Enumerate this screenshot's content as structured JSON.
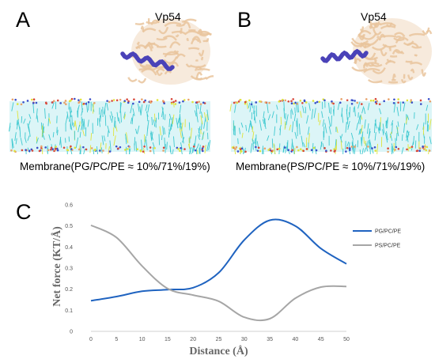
{
  "panels": {
    "a": {
      "letter": "A",
      "protein_label": "Vp54",
      "membrane_label": "Membrane(PG/PC/PE ≈ 10%/71%/19%)"
    },
    "b": {
      "letter": "B",
      "protein_label": "Vp54",
      "membrane_label": "Membrane(PS/PC/PE ≈ 10%/71%/19%)"
    },
    "c": {
      "letter": "C"
    }
  },
  "colors": {
    "protein_ribbon": "#e9c49c",
    "helix": "#4a42b8",
    "lipid_tails": "#3fc9d0",
    "lipid_yellow": "#e0e43a",
    "headgroup_red": "#d9483b",
    "headgroup_blue": "#3a4fc9"
  },
  "chart_data": {
    "type": "line",
    "title": "",
    "xlabel": "Distance (Å)",
    "ylabel": "Net force (KT/Å)",
    "x": [
      0,
      5,
      10,
      15,
      20,
      25,
      30,
      35,
      40,
      45,
      50
    ],
    "xticks": [
      "0",
      "5",
      "10",
      "15",
      "20",
      "25",
      "30",
      "35",
      "40",
      "45",
      "50"
    ],
    "ylim": [
      0,
      0.6
    ],
    "yticks": [
      "0",
      "0.1",
      "0.2",
      "0.3",
      "0.4",
      "0.5",
      "0.6"
    ],
    "grid": false,
    "legend_position": "right",
    "series": [
      {
        "name": "PG/PC/PE",
        "color": "#1f63c0",
        "values": [
          0.145,
          0.165,
          0.19,
          0.198,
          0.207,
          0.278,
          0.433,
          0.527,
          0.5,
          0.393,
          0.32
        ]
      },
      {
        "name": "PS/PC/PE",
        "color": "#a6a6a6",
        "values": [
          0.503,
          0.445,
          0.31,
          0.203,
          0.172,
          0.143,
          0.067,
          0.06,
          0.157,
          0.21,
          0.213
        ]
      }
    ]
  }
}
